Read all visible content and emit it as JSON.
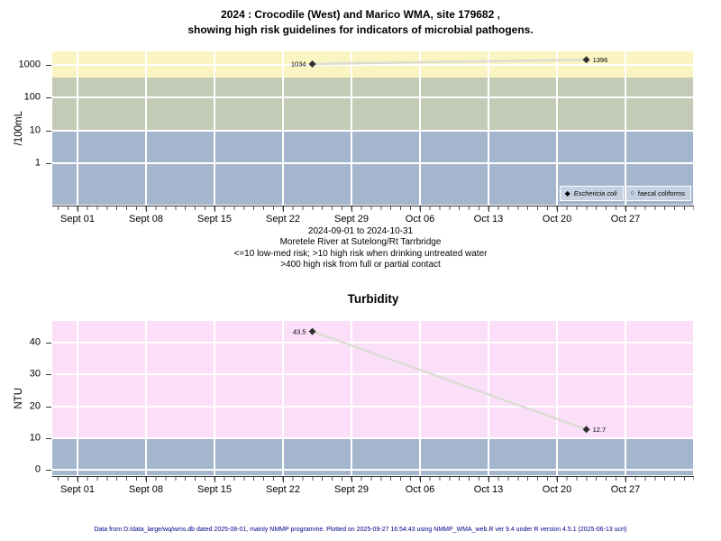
{
  "title": {
    "line1": "2024 : Crocodile (West) and Marico WMA, site 179682 ,",
    "line2": "showing high risk guidelines for indicators of microbial pathogens."
  },
  "caption": {
    "line1": "2024-09-01 to 2024-10-31",
    "line2": "Moretele River at Sutelong/Rt Tarrbridge",
    "line3": "<=10 low-med risk; >10 high risk when drinking untreated water",
    "line4": ">400 high risk from full or partial contact"
  },
  "footer": "Data from D:/data_large/wq/wms.db dated 2025-08-01, mainly NMMP programme. Plotted on 2025-09-27 16:54:43 using NMMP_WMA_web.R ver 9.4 under R version 4.5.1 (2025-06-13 ucrt)",
  "colors": {
    "band_high_risk_yellow": "#FAF4C3",
    "band_medium_olive": "#C3CBB7",
    "band_low_blue": "#A4B5CE",
    "band_turbidity_pink": "#FBDFF9",
    "band_turbidity_blue": "#A4B5CE",
    "legend_background": "#C5D1E0",
    "series_line": "#DCDCD2",
    "marker": "#2F2F2F",
    "footer_text": "#00008B"
  },
  "chart_data": [
    {
      "type": "line",
      "title": "",
      "ylabel": "/100mL",
      "yscale": "log",
      "x_range": "2024-09-01 to 2024-10-31",
      "xticklabels": [
        "Sept 01",
        "Sept 08",
        "Sept 15",
        "Sept 22",
        "Sept 29",
        "Oct 06",
        "Oct 13",
        "Oct 20",
        "Oct 27"
      ],
      "yticklabels": [
        "1000",
        "100",
        "10",
        "1"
      ],
      "guideline_bands": [
        {
          "threshold": ">400",
          "color_key": "band_high_risk_yellow",
          "meaning": "high risk from full or partial contact"
        },
        {
          "threshold": "10-400",
          "color_key": "band_medium_olive",
          "meaning": "high risk when drinking untreated water"
        },
        {
          "threshold": "<=10",
          "color_key": "band_low_blue",
          "meaning": "low-med risk"
        }
      ],
      "legend": [
        {
          "label": "Eschericia coli",
          "marker": "filled-diamond",
          "italic": true
        },
        {
          "label": "faecal coliforms",
          "marker": "open-circle",
          "italic": false
        }
      ],
      "series": [
        {
          "name": "Eschericia coli",
          "points": [
            {
              "day_from_sep01": 24,
              "value": 1034,
              "label": "1034"
            },
            {
              "day_from_sep01": 52,
              "value": 1396,
              "label": "1396"
            }
          ]
        },
        {
          "name": "faecal coliforms",
          "points": []
        }
      ]
    },
    {
      "type": "line",
      "title": "Turbidity",
      "ylabel": "NTU",
      "yscale": "linear",
      "ylim": [
        -2,
        47
      ],
      "xticklabels": [
        "Sept 01",
        "Sept 08",
        "Sept 15",
        "Sept 22",
        "Sept 29",
        "Oct 06",
        "Oct 13",
        "Oct 20",
        "Oct 27"
      ],
      "yticklabels": [
        "40",
        "30",
        "20",
        "10",
        "0"
      ],
      "guideline_bands": [
        {
          "threshold": ">10",
          "color_key": "band_turbidity_pink"
        },
        {
          "threshold": "<=10",
          "color_key": "band_turbidity_blue"
        }
      ],
      "series": [
        {
          "name": "Turbidity",
          "points": [
            {
              "day_from_sep01": 24,
              "value": 43.5,
              "label": "43.5"
            },
            {
              "day_from_sep01": 52,
              "value": 12.7,
              "label": "12.7"
            }
          ]
        }
      ]
    }
  ]
}
